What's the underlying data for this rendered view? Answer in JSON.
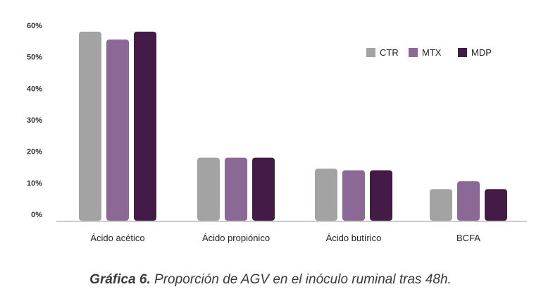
{
  "chart_data": {
    "type": "bar",
    "categories": [
      "Ácido acético",
      "Ácido propiónico",
      "Ácido butírico",
      "BCFA"
    ],
    "series": [
      {
        "name": "CTR",
        "color": "#a3a3a3",
        "values": [
          58,
          18,
          14.5,
          8
        ]
      },
      {
        "name": "MTX",
        "color": "#8b6896",
        "values": [
          55.5,
          18,
          14,
          10.5
        ]
      },
      {
        "name": "MDP",
        "color": "#441b46",
        "values": [
          58,
          18,
          14,
          8
        ]
      }
    ],
    "yticks": [
      "0%",
      "10%",
      "20%",
      "30%",
      "40%",
      "50%",
      "60%"
    ],
    "ylim": [
      0,
      60
    ],
    "grid": false,
    "legend_position": "top-right"
  },
  "caption": {
    "label": "Gráfica 6.",
    "text": " Proporción de AGV en el inóculo ruminal tras 48h."
  }
}
